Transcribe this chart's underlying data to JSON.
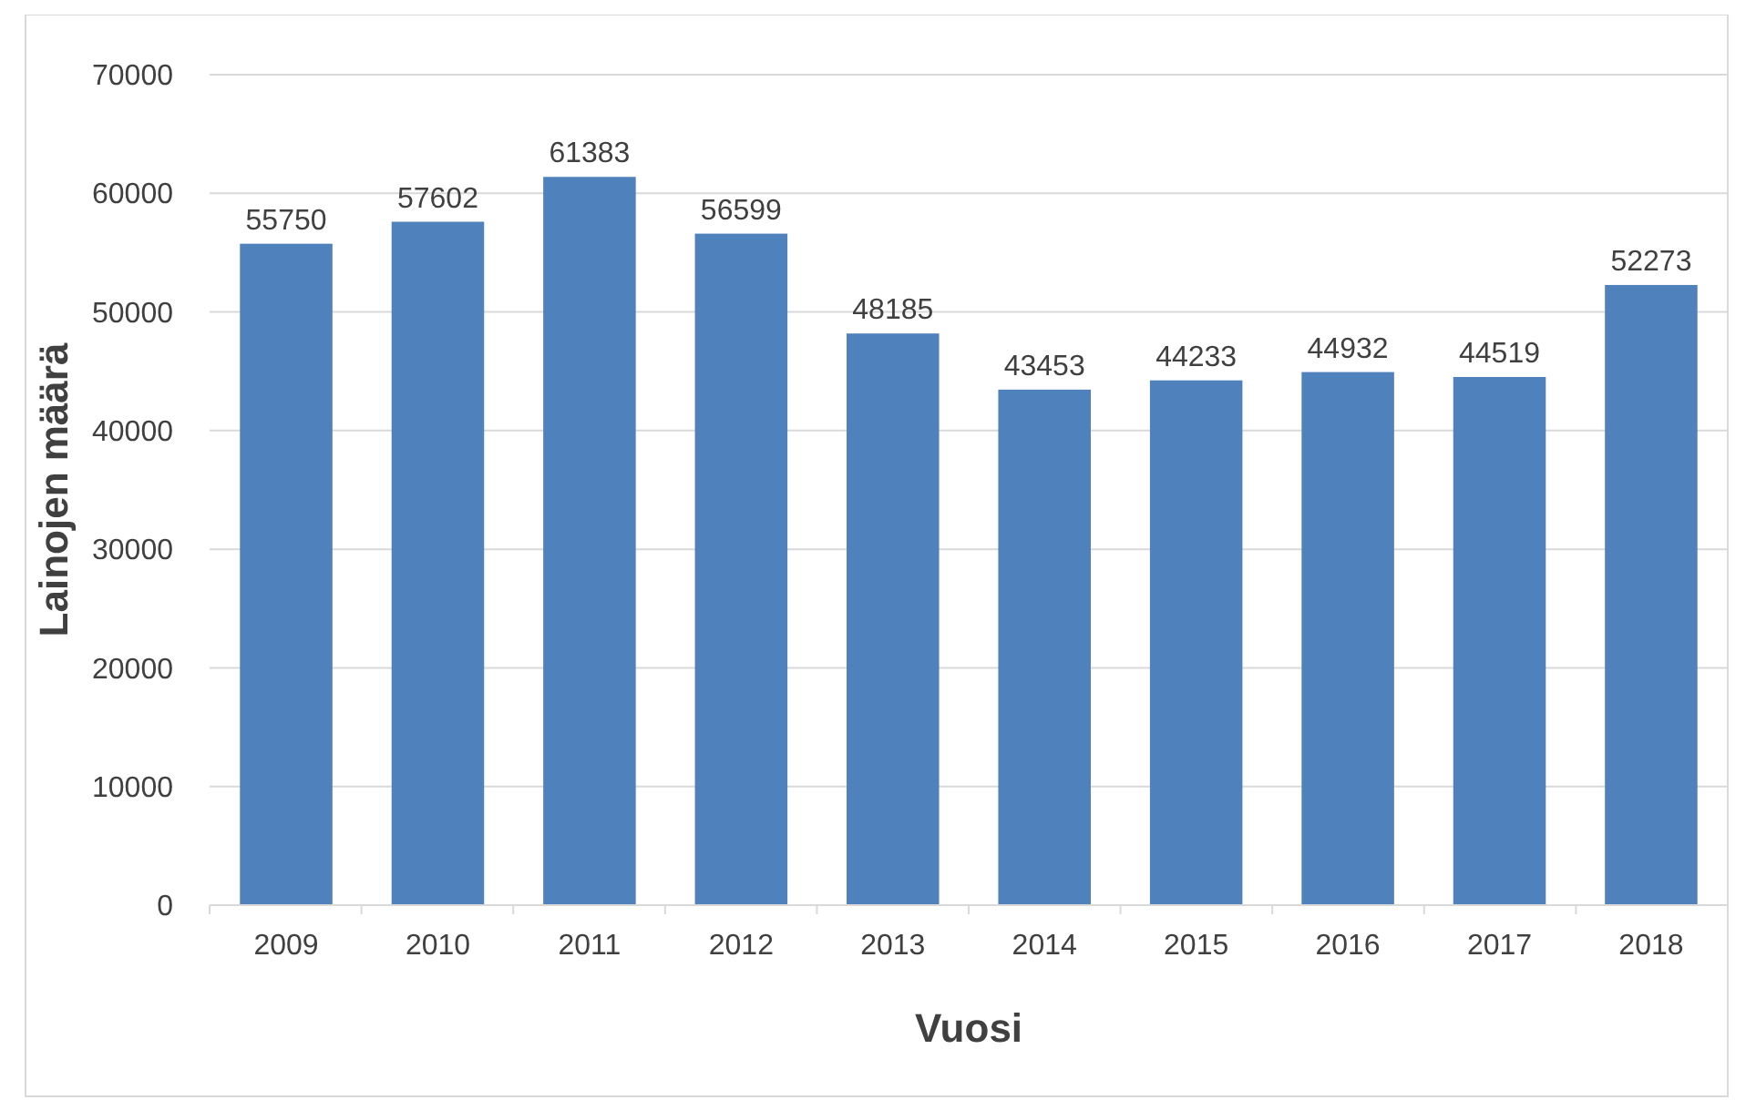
{
  "chart_data": {
    "type": "bar",
    "xlabel": "Vuosi",
    "ylabel": "Lainojen määrä",
    "categories": [
      "2009",
      "2010",
      "2011",
      "2012",
      "2013",
      "2014",
      "2015",
      "2016",
      "2017",
      "2018"
    ],
    "values": [
      55750,
      57602,
      61383,
      56599,
      48185,
      43453,
      44233,
      44932,
      44519,
      52273
    ],
    "color": "#4f81bd",
    "ylim": [
      0,
      70000
    ],
    "yticks": [
      0,
      10000,
      20000,
      30000,
      40000,
      50000,
      60000,
      70000
    ],
    "grid": "y",
    "data_labels": true
  }
}
